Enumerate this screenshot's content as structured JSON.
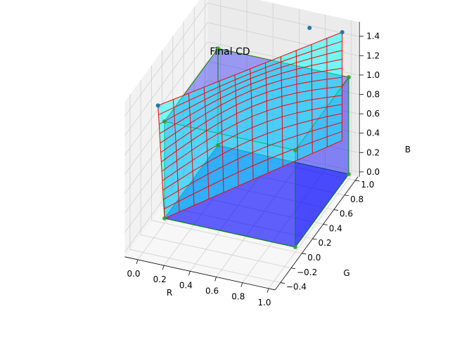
{
  "chart_data": {
    "type": "3d-surface-wireframe",
    "title": "Final CD",
    "xlabel": "R",
    "ylabel": "G",
    "zlabel": "B",
    "xlim": [
      -0.1,
      1.05
    ],
    "ylim": [
      -0.5,
      1.05
    ],
    "zlim": [
      -0.05,
      1.55
    ],
    "x_ticks": [
      "0.0",
      "0.2",
      "0.4",
      "0.6",
      "0.8",
      "1.0"
    ],
    "y_ticks": [
      "−0.4",
      "−0.2",
      "0.0",
      "0.2",
      "0.4",
      "0.6",
      "0.8",
      "1.0"
    ],
    "z_ticks": [
      "0.0",
      "0.2",
      "0.4",
      "0.6",
      "0.8",
      "1.0",
      "1.2",
      "1.4"
    ],
    "grid": true,
    "colors": {
      "wireframe": "#ff0000",
      "cube_edges": "#008000",
      "cube_faces": "#0000ff",
      "cyan_surface": "#00ffff",
      "corner_points": "#2ca02c",
      "boundary_points": "#1f77b4"
    },
    "cube_corners": [
      [
        0,
        0,
        0
      ],
      [
        1,
        0,
        0
      ],
      [
        0,
        1,
        0
      ],
      [
        1,
        1,
        0
      ],
      [
        0,
        0,
        1
      ],
      [
        1,
        0,
        1
      ],
      [
        0,
        1,
        1
      ],
      [
        1,
        1,
        1
      ]
    ],
    "deformed_region": {
      "note_free": true,
      "corners": [
        [
          0,
          0,
          0
        ],
        [
          -0.05,
          0,
          1.15
        ],
        [
          0.95,
          1.0,
          1.45
        ],
        [
          1.05,
          0.75,
          0.55
        ]
      ],
      "red_boundary_points": [
        [
          -0.05,
          0,
          1.15
        ],
        [
          0.95,
          1.0,
          1.45
        ],
        [
          0.7,
          1.0,
          1.42
        ]
      ]
    }
  }
}
